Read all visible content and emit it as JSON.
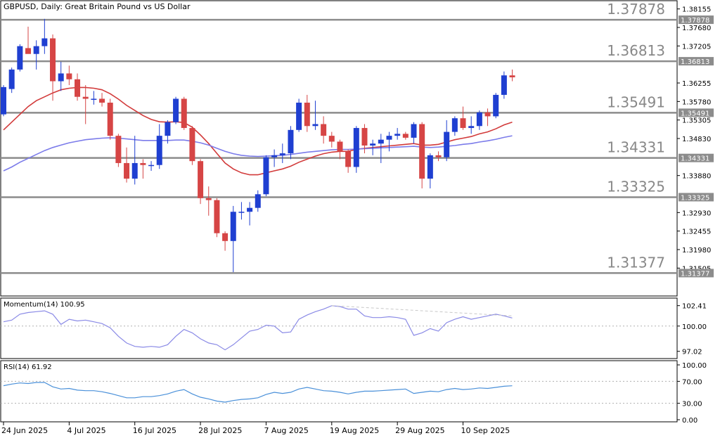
{
  "header": {
    "title": "GBPUSD, Daily:  Great Britain Pound vs US Dollar"
  },
  "colors": {
    "bull": "#1f3fd1",
    "bear": "#d64545",
    "ma_fast": "#d23a3a",
    "ma_slow": "#7b7bea",
    "momentum": "#8a8ae6",
    "rsi": "#4a90d9",
    "level_line": "#8c8c8c",
    "level_text": "#888888"
  },
  "chart_data": [
    {
      "type": "candlestick",
      "title": "GBPUSD, Daily:  Great Britain Pound vs US Dollar",
      "ylim": [
        1.3115,
        1.3824
      ],
      "y_ticks": [
        "1.38155",
        "1.37878",
        "1.37680",
        "1.37205",
        "1.36813",
        "1.36255",
        "1.35780",
        "1.35491",
        "1.35305",
        "1.34830",
        "1.34331",
        "1.33880",
        "1.33325",
        "1.32930",
        "1.32455",
        "1.31980",
        "1.31505",
        "1.31377"
      ],
      "highlighted_ticks": [
        "1.37878",
        "1.36813",
        "1.35491",
        "1.34331",
        "1.33325",
        "1.31377"
      ],
      "x_labels": [
        {
          "label": "24 Jun 2025",
          "index": 0
        },
        {
          "label": "4 Jul 2025",
          "index": 8
        },
        {
          "label": "16 Jul 2025",
          "index": 16
        },
        {
          "label": "28 Jul 2025",
          "index": 24
        },
        {
          "label": "7 Aug 2025",
          "index": 32
        },
        {
          "label": "19 Aug 2025",
          "index": 40
        },
        {
          "label": "29 Aug 2025",
          "index": 48
        },
        {
          "label": "10 Sep 2025",
          "index": 56
        }
      ],
      "levels": [
        "1.37878",
        "1.36813",
        "1.35491",
        "1.34331",
        "1.33325",
        "1.31377"
      ],
      "candles": [
        [
          1.3545,
          1.362,
          1.354,
          1.3615
        ],
        [
          1.361,
          1.3665,
          1.36,
          1.366
        ],
        [
          1.366,
          1.3725,
          1.3655,
          1.372
        ],
        [
          1.3715,
          1.377,
          1.3705,
          1.37
        ],
        [
          1.37,
          1.3735,
          1.366,
          1.372
        ],
        [
          1.372,
          1.379,
          1.37,
          1.374
        ],
        [
          1.374,
          1.375,
          1.358,
          1.363
        ],
        [
          1.363,
          1.368,
          1.3605,
          1.365
        ],
        [
          1.365,
          1.367,
          1.362,
          1.3635
        ],
        [
          1.3635,
          1.365,
          1.358,
          1.359
        ],
        [
          1.359,
          1.362,
          1.352,
          1.3585
        ],
        [
          1.3585,
          1.3605,
          1.357,
          1.3585
        ],
        [
          1.3585,
          1.36,
          1.3565,
          1.3575
        ],
        [
          1.3575,
          1.3585,
          1.348,
          1.349
        ],
        [
          1.349,
          1.3495,
          1.341,
          1.342
        ],
        [
          1.342,
          1.346,
          1.337,
          1.338
        ],
        [
          1.338,
          1.349,
          1.3365,
          1.342
        ],
        [
          1.342,
          1.343,
          1.338,
          1.3415
        ],
        [
          1.3415,
          1.3425,
          1.34,
          1.3415
        ],
        [
          1.3415,
          1.352,
          1.3405,
          1.349
        ],
        [
          1.349,
          1.353,
          1.347,
          1.3525
        ],
        [
          1.3525,
          1.359,
          1.352,
          1.3585
        ],
        [
          1.3585,
          1.359,
          1.3505,
          1.351
        ],
        [
          1.351,
          1.3515,
          1.3415,
          1.3425
        ],
        [
          1.3425,
          1.343,
          1.3315,
          1.333
        ],
        [
          1.333,
          1.336,
          1.3285,
          1.3325
        ],
        [
          1.3325,
          1.333,
          1.323,
          1.324
        ],
        [
          1.324,
          1.3245,
          1.3195,
          1.322
        ],
        [
          1.322,
          1.331,
          1.314,
          1.3295
        ],
        [
          1.3295,
          1.332,
          1.3275,
          1.3295
        ],
        [
          1.3295,
          1.332,
          1.326,
          1.3305
        ],
        [
          1.3305,
          1.335,
          1.3295,
          1.334
        ],
        [
          1.334,
          1.344,
          1.3335,
          1.3435
        ],
        [
          1.3435,
          1.3455,
          1.341,
          1.344
        ],
        [
          1.344,
          1.347,
          1.342,
          1.3445
        ],
        [
          1.3445,
          1.3515,
          1.343,
          1.3505
        ],
        [
          1.3505,
          1.3585,
          1.35,
          1.3575
        ],
        [
          1.3575,
          1.3595,
          1.35,
          1.3515
        ],
        [
          1.3515,
          1.358,
          1.3505,
          1.352
        ],
        [
          1.352,
          1.354,
          1.347,
          1.349
        ],
        [
          1.349,
          1.35,
          1.346,
          1.3475
        ],
        [
          1.3475,
          1.348,
          1.343,
          1.345
        ],
        [
          1.345,
          1.3455,
          1.3395,
          1.341
        ],
        [
          1.341,
          1.3515,
          1.3395,
          1.351
        ],
        [
          1.351,
          1.352,
          1.3445,
          1.3465
        ],
        [
          1.3465,
          1.348,
          1.344,
          1.347
        ],
        [
          1.347,
          1.3495,
          1.342,
          1.348
        ],
        [
          1.348,
          1.35,
          1.345,
          1.349
        ],
        [
          1.349,
          1.351,
          1.348,
          1.3495
        ],
        [
          1.3495,
          1.35,
          1.348,
          1.3485
        ],
        [
          1.3485,
          1.3525,
          1.347,
          1.352
        ],
        [
          1.352,
          1.3525,
          1.3355,
          1.338
        ],
        [
          1.338,
          1.3445,
          1.3355,
          1.344
        ],
        [
          1.344,
          1.345,
          1.3425,
          1.3435
        ],
        [
          1.3435,
          1.353,
          1.3425,
          1.35
        ],
        [
          1.35,
          1.354,
          1.349,
          1.3535
        ],
        [
          1.3535,
          1.3565,
          1.3505,
          1.351
        ],
        [
          1.351,
          1.354,
          1.3495,
          1.3515
        ],
        [
          1.3515,
          1.3555,
          1.3505,
          1.355
        ],
        [
          1.355,
          1.356,
          1.3515,
          1.354
        ],
        [
          1.354,
          1.36,
          1.3535,
          1.3595
        ],
        [
          1.3595,
          1.3655,
          1.3585,
          1.3645
        ],
        [
          1.3645,
          1.366,
          1.363,
          1.364
        ]
      ],
      "series": [
        {
          "values": [
            1.3505,
            1.3525,
            1.3545,
            1.3565,
            1.358,
            1.359,
            1.36,
            1.3608,
            1.3612,
            1.3614,
            1.3614,
            1.3612,
            1.3608,
            1.3598,
            1.3584,
            1.3568,
            1.3555,
            1.3542,
            1.3532,
            1.3526,
            1.3525,
            1.3526,
            1.3524,
            1.3512,
            1.3492,
            1.347,
            1.3445,
            1.342,
            1.3405,
            1.3395,
            1.339,
            1.339,
            1.3395,
            1.34,
            1.3405,
            1.3412,
            1.3422,
            1.343,
            1.3438,
            1.3444,
            1.3448,
            1.345,
            1.345,
            1.3455,
            1.3458,
            1.346,
            1.3462,
            1.3464,
            1.3466,
            1.3468,
            1.347,
            1.3466,
            1.3466,
            1.3468,
            1.3474,
            1.348,
            1.3484,
            1.3488,
            1.3495,
            1.35,
            1.3508,
            1.3518,
            1.3525
          ]
        },
        {
          "values": [
            1.34,
            1.341,
            1.3422,
            1.3432,
            1.3442,
            1.3452,
            1.346,
            1.3466,
            1.3472,
            1.3476,
            1.348,
            1.3482,
            1.3484,
            1.3485,
            1.3484,
            1.3482,
            1.348,
            1.3478,
            1.3478,
            1.3478,
            1.3478,
            1.3479,
            1.3479,
            1.3476,
            1.3472,
            1.3466,
            1.3458,
            1.345,
            1.3444,
            1.344,
            1.3438,
            1.3437,
            1.3438,
            1.3439,
            1.344,
            1.3442,
            1.3445,
            1.3448,
            1.345,
            1.3452,
            1.3454,
            1.3455,
            1.3455,
            1.3456,
            1.3457,
            1.3458,
            1.3459,
            1.346,
            1.3461,
            1.3462,
            1.3463,
            1.3461,
            1.346,
            1.3461,
            1.3463,
            1.3465,
            1.3468,
            1.347,
            1.3474,
            1.3477,
            1.3481,
            1.3486,
            1.349
          ]
        }
      ]
    },
    {
      "type": "line",
      "title": "Momentum(14) 100.95",
      "ylim": [
        96.5,
        102.8
      ],
      "y_ticks": [
        "102.41",
        "100.00",
        "97.02"
      ],
      "series": [
        {
          "values": [
            100.5,
            100.7,
            101.4,
            101.6,
            101.7,
            101.8,
            101.4,
            100.2,
            100.8,
            100.6,
            100.7,
            100.5,
            100.3,
            99.8,
            98.8,
            98.0,
            97.6,
            97.5,
            97.6,
            97.5,
            97.8,
            98.8,
            99.6,
            99.2,
            98.5,
            98.0,
            97.8,
            97.2,
            97.8,
            98.6,
            99.4,
            99.6,
            100.1,
            100.0,
            99.2,
            99.3,
            100.8,
            101.3,
            101.7,
            102.0,
            102.4,
            102.3,
            102.0,
            102.0,
            101.2,
            101.0,
            101.0,
            101.1,
            101.0,
            100.8,
            98.9,
            99.2,
            99.7,
            99.4,
            100.4,
            100.8,
            101.1,
            100.8,
            101.0,
            101.2,
            101.4,
            101.2,
            100.95
          ]
        },
        {
          "values": [
            102.41,
            101.2
          ]
        }
      ]
    },
    {
      "type": "line",
      "title": "RSI(14) 61.92",
      "ylim": [
        0,
        100
      ],
      "y_ticks": [
        "100.00",
        "70.00",
        "30.00",
        "0.00"
      ],
      "series": [
        {
          "values": [
            62,
            65,
            67,
            66,
            68,
            68,
            60,
            56,
            57,
            54,
            53,
            53,
            51,
            48,
            44,
            40,
            40,
            42,
            42,
            44,
            47,
            52,
            55,
            47,
            41,
            38,
            34,
            32,
            35,
            37,
            38,
            40,
            46,
            50,
            48,
            50,
            56,
            59,
            56,
            53,
            52,
            50,
            47,
            50,
            52,
            52,
            53,
            54,
            55,
            56,
            48,
            50,
            52,
            51,
            55,
            57,
            55,
            56,
            58,
            57,
            59,
            61,
            61.92
          ]
        }
      ]
    }
  ]
}
